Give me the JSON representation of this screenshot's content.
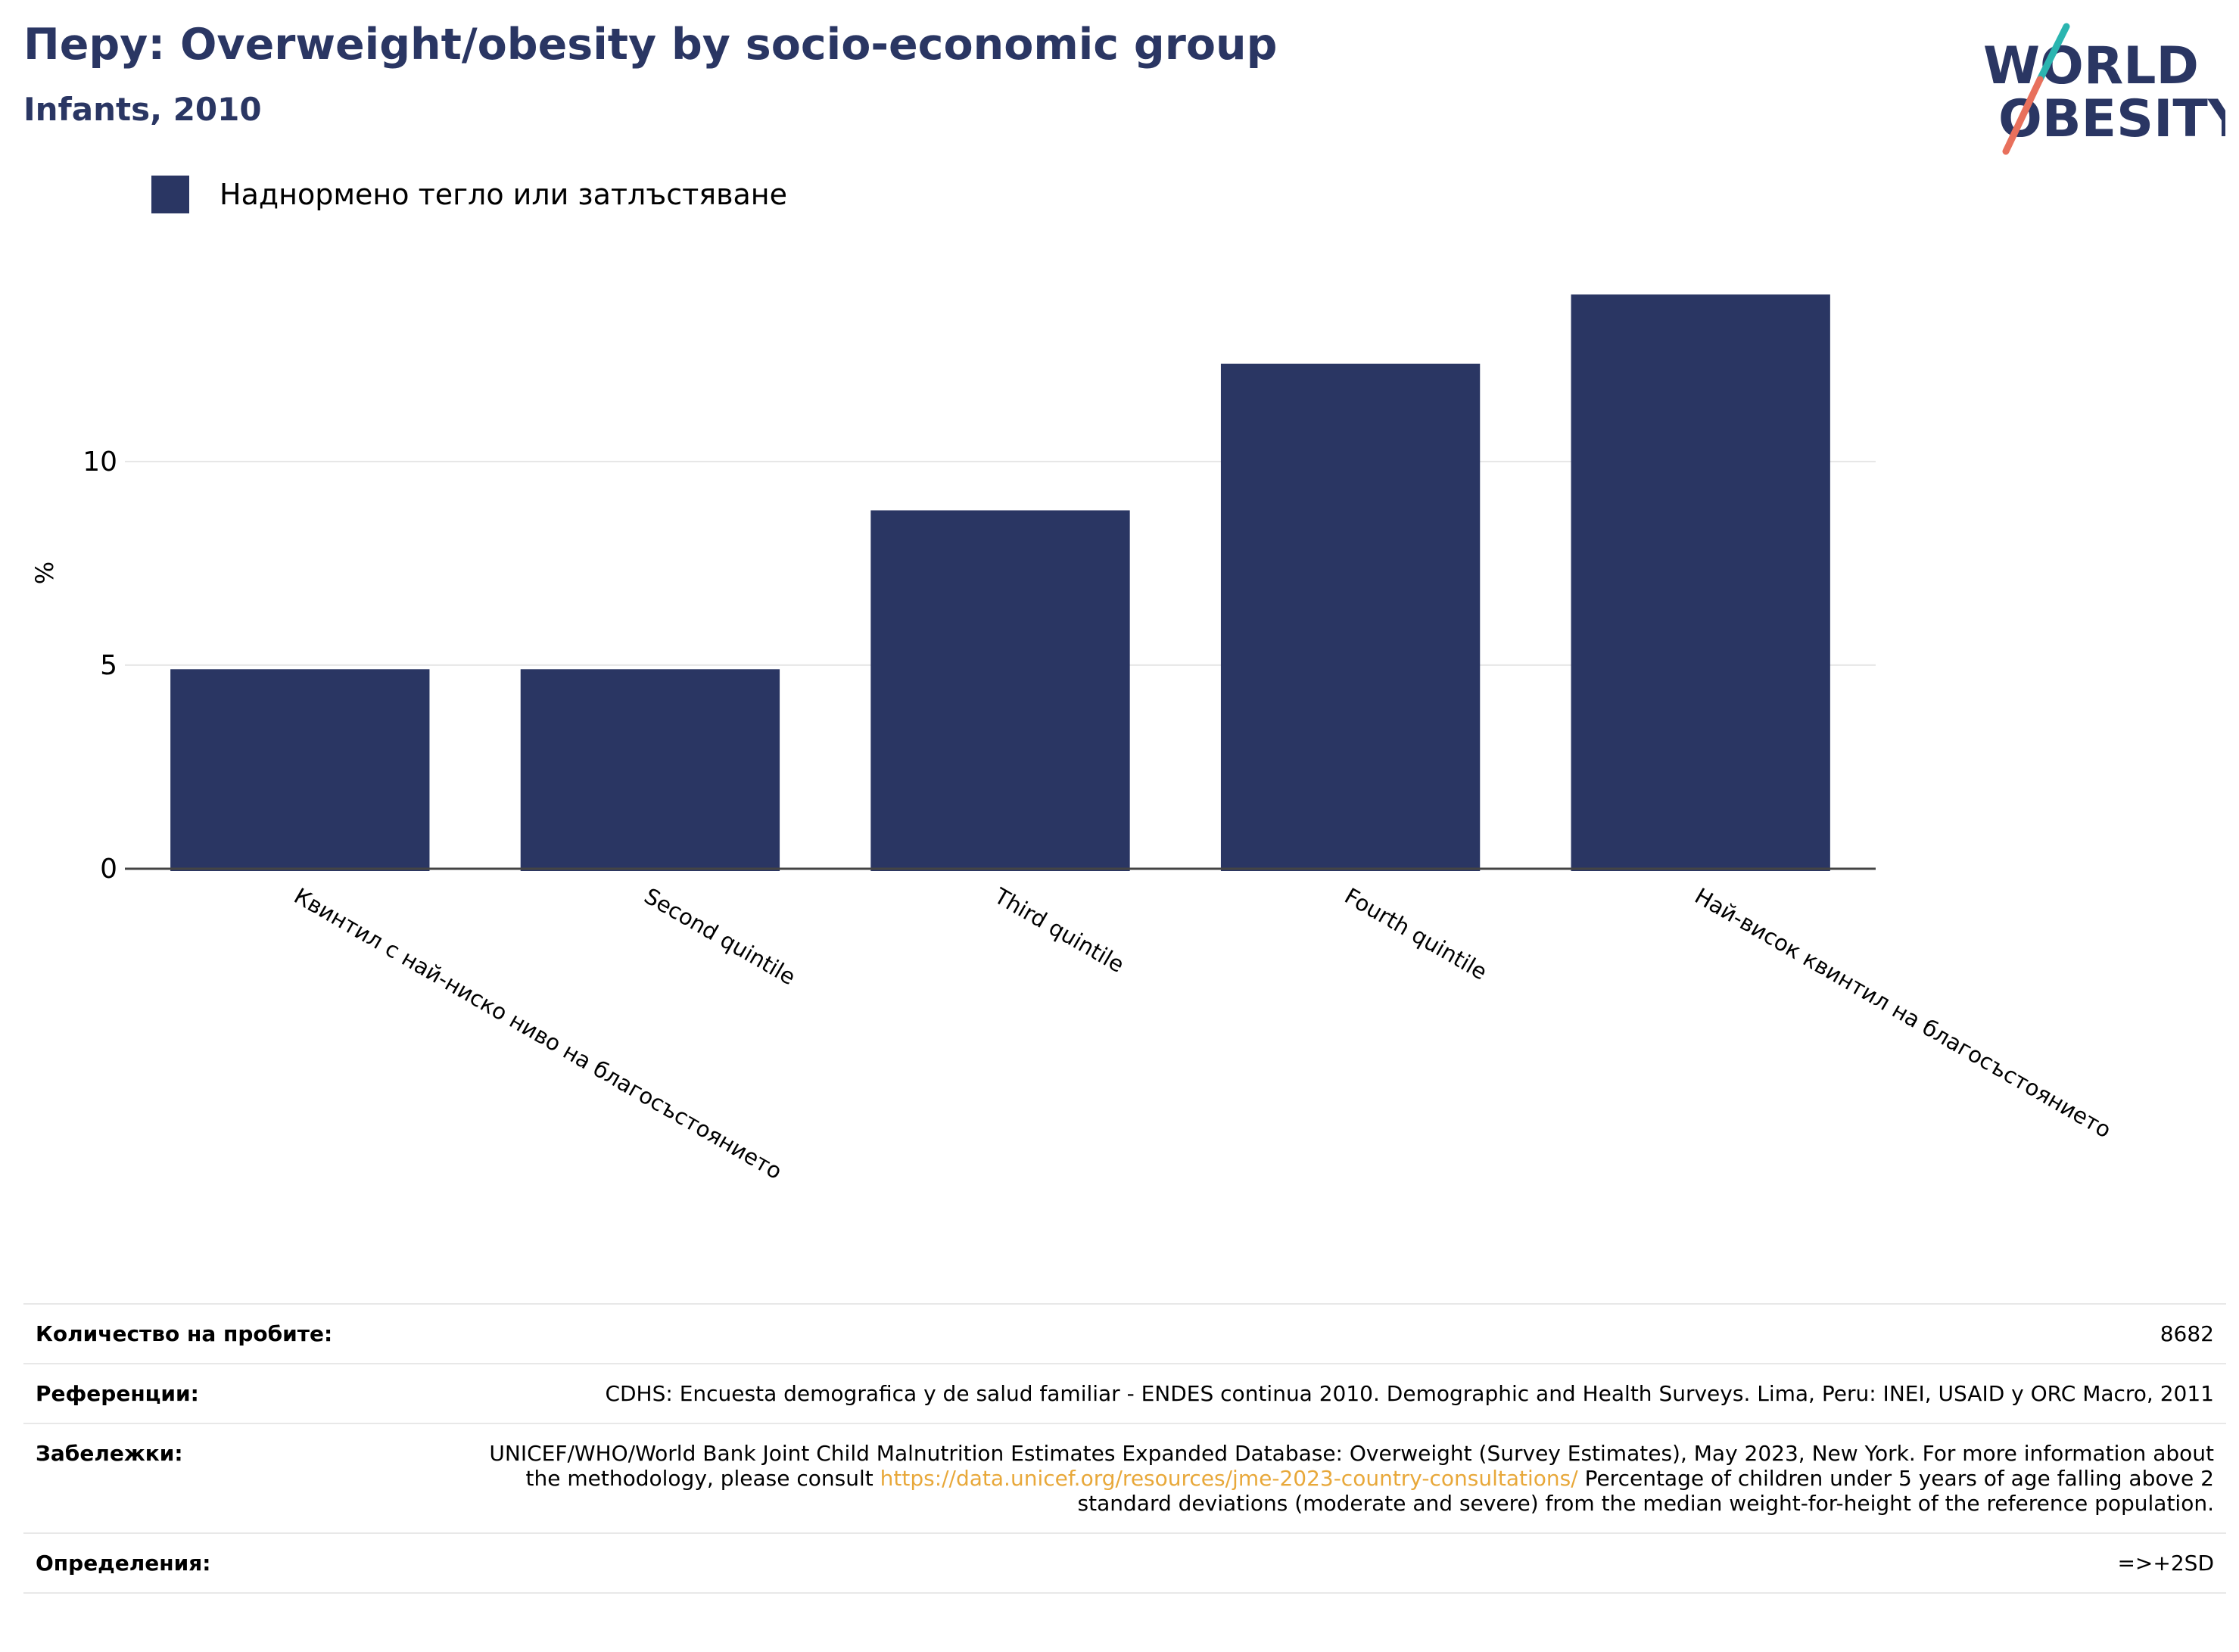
{
  "header": {
    "title": "Перу: Overweight/obesity by socio-economic group",
    "subtitle": "Infants, 2010"
  },
  "logo": {
    "line1": "WORLD",
    "line2": "OBESITY",
    "colors": {
      "text": "#2a3663",
      "slash_top": "#2bb5b0",
      "slash_bottom": "#e8705c"
    }
  },
  "legend": {
    "label": "Наднормено тегло или затлъстяване"
  },
  "chart_data": {
    "type": "bar",
    "title": "Перу: Overweight/obesity by socio-economic group",
    "subtitle": "Infants, 2010",
    "ylabel": "%",
    "xlabel": "",
    "categories": [
      "Квинтил с най-ниско ниво на благосъстоянието",
      "Second quintile",
      "Third quintile",
      "Fourth quintile",
      "Най-висок квинтил на благосъстоянието"
    ],
    "series": [
      {
        "name": "Наднормено тегло или затлъстяване",
        "values": [
          4.9,
          4.9,
          8.8,
          12.4,
          14.1
        ]
      }
    ],
    "ylim": [
      0,
      15.2
    ],
    "yticks": [
      0,
      5,
      10
    ],
    "grid": true,
    "legend_position": "top-left",
    "bar_color": "#2a3663"
  },
  "info_table": {
    "rows": [
      {
        "key": "Количество на пробите:",
        "value": "8682"
      },
      {
        "key": "Референции:",
        "value": "CDHS: Encuesta demografica y de salud familiar - ENDES continua 2010. Demographic and Health Surveys. Lima, Peru: INEI, USAID y ORC Macro, 2011"
      },
      {
        "key": "Забележки:",
        "value_before": "UNICEF/WHO/World Bank Joint Child Malnutrition Estimates Expanded Database: Overweight (Survey Estimates), May 2023, New York. For more information about the methodology, please consult ",
        "link": "https://data.unicef.org/resources/jme-2023-country-consultations/",
        "value_after": " Percentage of children under 5 years of age falling above 2 standard deviations (moderate and severe) from the median weight-for-height of the reference population."
      },
      {
        "key": "Определения:",
        "value": "=>+2SD"
      }
    ]
  }
}
